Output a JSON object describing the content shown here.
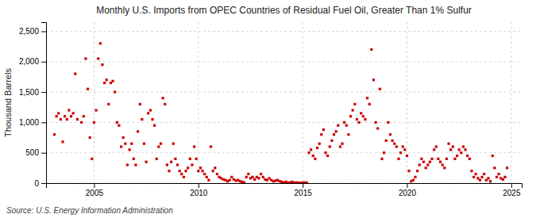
{
  "chart_data": {
    "type": "scatter",
    "title": "Monthly U.S. Imports from OPEC Countries of Residual Fuel Oil, Greater Than 1% Sulfur",
    "ylabel": "Thousand Barrels",
    "annotations": [
      "Source: U.S. Energy Information Administration"
    ],
    "color": "#cc0000",
    "marker": "square",
    "grid": true,
    "xlim": [
      2002.7,
      2025.5
    ],
    "ylim": [
      0,
      2650
    ],
    "xticks": [
      2005,
      2010,
      2015,
      2020,
      2025
    ],
    "yticks": [
      0,
      500,
      {
        "value": 1000,
        "label": "1,000"
      },
      {
        "value": 1500,
        "label": "1,500"
      },
      {
        "value": 2000,
        "label": "2,000"
      },
      {
        "value": 2500,
        "label": "2,500"
      }
    ],
    "x": [
      2003.1,
      2003.2,
      2003.3,
      2003.4,
      2003.5,
      2003.6,
      2003.7,
      2003.8,
      2003.9,
      2004.0,
      2004.1,
      2004.2,
      2004.4,
      2004.5,
      2004.6,
      2004.7,
      2004.8,
      2004.9,
      2005.0,
      2005.1,
      2005.2,
      2005.3,
      2005.4,
      2005.5,
      2005.6,
      2005.7,
      2005.8,
      2005.9,
      2006.0,
      2006.1,
      2006.2,
      2006.3,
      2006.4,
      2006.5,
      2006.6,
      2006.7,
      2006.8,
      2006.9,
      2007.0,
      2007.1,
      2007.2,
      2007.3,
      2007.4,
      2007.5,
      2007.6,
      2007.7,
      2007.8,
      2007.9,
      2008.0,
      2008.1,
      2008.2,
      2008.3,
      2008.4,
      2008.5,
      2008.6,
      2008.7,
      2008.8,
      2008.9,
      2009.0,
      2009.1,
      2009.2,
      2009.3,
      2009.4,
      2009.5,
      2009.6,
      2009.7,
      2009.8,
      2009.9,
      2010.0,
      2010.1,
      2010.2,
      2010.3,
      2010.4,
      2010.5,
      2010.6,
      2010.7,
      2010.8,
      2010.9,
      2011.0,
      2011.1,
      2011.2,
      2011.3,
      2011.4,
      2011.5,
      2011.6,
      2011.7,
      2011.8,
      2011.9,
      2012.0,
      2012.1,
      2012.2,
      2012.3,
      2012.4,
      2012.5,
      2012.6,
      2012.7,
      2012.8,
      2012.9,
      2013.0,
      2013.1,
      2013.2,
      2013.3,
      2013.4,
      2013.5,
      2013.6,
      2013.7,
      2013.8,
      2013.9,
      2014.0,
      2014.1,
      2014.2,
      2014.3,
      2014.4,
      2014.5,
      2014.6,
      2014.7,
      2014.8,
      2014.9,
      2015.0,
      2015.1,
      2015.2,
      2015.3,
      2015.4,
      2015.5,
      2015.6,
      2015.7,
      2015.8,
      2015.9,
      2016.0,
      2016.1,
      2016.2,
      2016.3,
      2016.4,
      2016.5,
      2016.6,
      2016.7,
      2016.8,
      2016.9,
      2017.0,
      2017.1,
      2017.2,
      2017.3,
      2017.4,
      2017.5,
      2017.6,
      2017.7,
      2017.8,
      2017.9,
      2018.0,
      2018.1,
      2018.2,
      2018.3,
      2018.4,
      2018.5,
      2018.6,
      2018.7,
      2018.8,
      2018.9,
      2019.0,
      2019.1,
      2019.2,
      2019.3,
      2019.4,
      2019.5,
      2019.6,
      2019.7,
      2019.8,
      2019.9,
      2020.0,
      2020.1,
      2020.2,
      2020.3,
      2020.4,
      2020.5,
      2020.6,
      2020.7,
      2020.8,
      2020.9,
      2021.0,
      2021.1,
      2021.2,
      2021.3,
      2021.4,
      2021.5,
      2021.6,
      2021.7,
      2021.8,
      2021.9,
      2022.0,
      2022.1,
      2022.2,
      2022.3,
      2022.4,
      2022.5,
      2022.6,
      2022.7,
      2022.8,
      2022.9,
      2023.0,
      2023.1,
      2023.2,
      2023.3,
      2023.4,
      2023.5,
      2023.6,
      2023.7,
      2023.8,
      2023.9,
      2024.0,
      2024.1,
      2024.2,
      2024.3,
      2024.4,
      2024.5,
      2024.6,
      2024.7,
      2024.8
    ],
    "values": [
      800,
      1100,
      1150,
      1050,
      680,
      1100,
      1050,
      1200,
      1100,
      1150,
      1800,
      1050,
      1000,
      1100,
      2050,
      1550,
      750,
      400,
      1000,
      1200,
      2050,
      2300,
      1950,
      1650,
      1700,
      1300,
      1650,
      1680,
      1500,
      1000,
      950,
      600,
      750,
      650,
      300,
      550,
      650,
      400,
      300,
      850,
      1300,
      1050,
      650,
      350,
      1150,
      1200,
      1050,
      950,
      400,
      600,
      650,
      1400,
      1300,
      300,
      200,
      350,
      650,
      400,
      300,
      200,
      150,
      100,
      200,
      250,
      400,
      300,
      600,
      400,
      200,
      250,
      200,
      150,
      100,
      50,
      600,
      200,
      250,
      150,
      100,
      80,
      60,
      50,
      30,
      50,
      100,
      60,
      40,
      50,
      30,
      20,
      10,
      100,
      150,
      80,
      100,
      60,
      100,
      80,
      150,
      100,
      60,
      50,
      80,
      50,
      30,
      40,
      50,
      30,
      20,
      10,
      20,
      5,
      10,
      20,
      5,
      10,
      5,
      5,
      5,
      10,
      5,
      500,
      550,
      450,
      400,
      580,
      650,
      800,
      880,
      500,
      450,
      600,
      700,
      800,
      850,
      950,
      600,
      650,
      1000,
      950,
      800,
      1100,
      1200,
      1300,
      1050,
      1000,
      1150,
      1100,
      1050,
      1400,
      1300,
      2200,
      1700,
      1000,
      900,
      1550,
      400,
      500,
      700,
      1000,
      800,
      700,
      650,
      600,
      400,
      500,
      600,
      550,
      450,
      200,
      30,
      50,
      100,
      200,
      300,
      400,
      350,
      250,
      300,
      350,
      400,
      550,
      600,
      400,
      350,
      300,
      250,
      400,
      650,
      550,
      600,
      400,
      450,
      550,
      500,
      600,
      550,
      450,
      400,
      200,
      100,
      150,
      80,
      50,
      100,
      150,
      50,
      80,
      30,
      450,
      250,
      100,
      150,
      80,
      60,
      100,
      250
    ]
  }
}
